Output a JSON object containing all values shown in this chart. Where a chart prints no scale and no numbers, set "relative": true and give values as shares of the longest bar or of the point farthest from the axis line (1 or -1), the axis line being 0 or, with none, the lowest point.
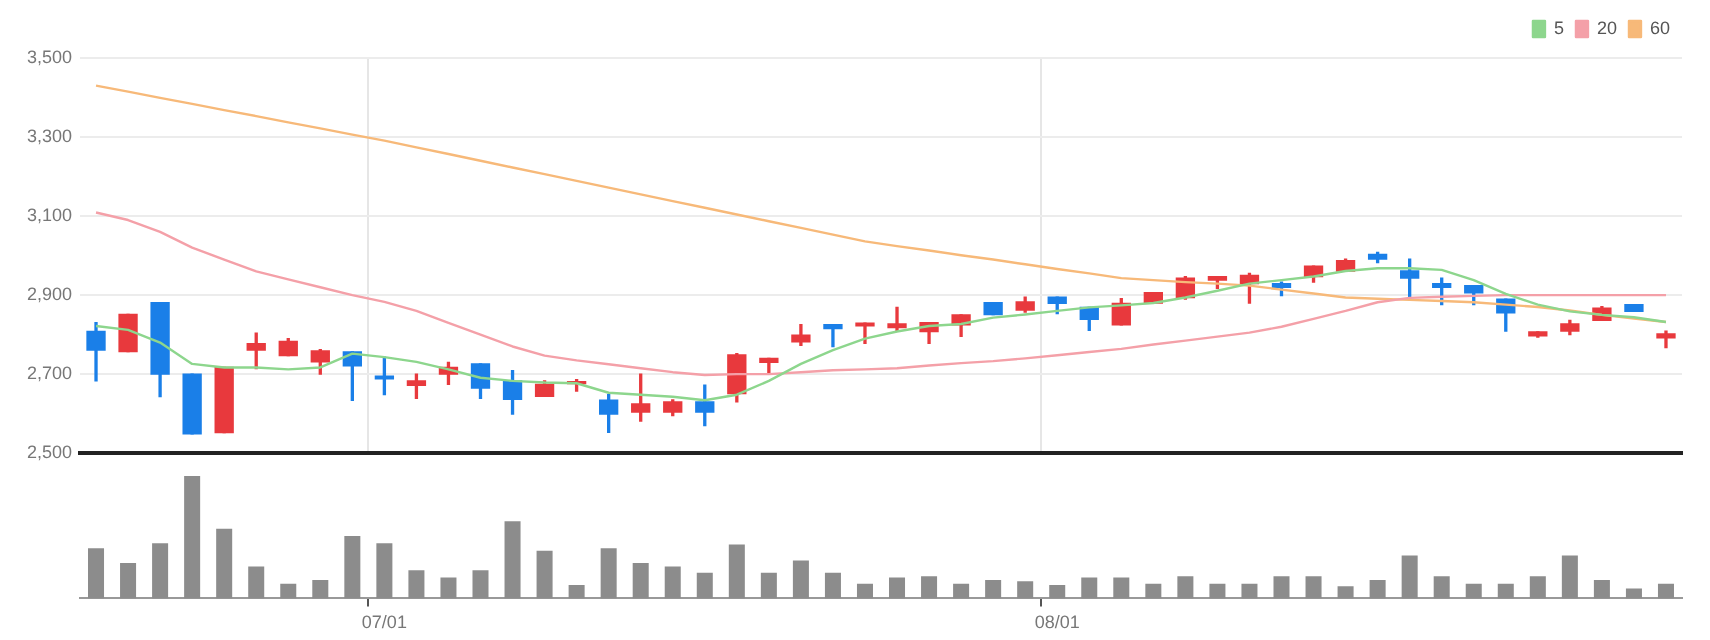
{
  "chart_data": [
    {
      "type": "candlestick",
      "categories": [
        null,
        null,
        null,
        null,
        null,
        null,
        null,
        null,
        null,
        null,
        null,
        null,
        null,
        null,
        null,
        null,
        null,
        null,
        null,
        null,
        null,
        null,
        null,
        null,
        null,
        null,
        null,
        null,
        null,
        null,
        null,
        null,
        null,
        null,
        null,
        null,
        null,
        null,
        null,
        null,
        null,
        null,
        null,
        null,
        null,
        null,
        null,
        null,
        null,
        null
      ],
      "ohlc": [
        [
          2808,
          2830,
          2683,
          2761
        ],
        [
          2757,
          2851,
          2757,
          2851
        ],
        [
          2881,
          2881,
          2643,
          2700
        ],
        [
          2700,
          2700,
          2549,
          2549
        ],
        [
          2552,
          2717,
          2552,
          2717
        ],
        [
          2761,
          2804,
          2714,
          2777
        ],
        [
          2747,
          2790,
          2747,
          2783
        ],
        [
          2731,
          2762,
          2700,
          2759
        ],
        [
          2756,
          2756,
          2634,
          2721
        ],
        [
          2695,
          2743,
          2648,
          2688
        ],
        [
          2672,
          2700,
          2639,
          2683
        ],
        [
          2700,
          2730,
          2674,
          2717
        ],
        [
          2726,
          2726,
          2639,
          2665
        ],
        [
          2683,
          2709,
          2599,
          2636
        ],
        [
          2644,
          2683,
          2644,
          2674
        ],
        [
          2676,
          2686,
          2657,
          2681
        ],
        [
          2634,
          2648,
          2553,
          2599
        ],
        [
          2604,
          2700,
          2581,
          2625
        ],
        [
          2604,
          2635,
          2595,
          2630
        ],
        [
          2630,
          2672,
          2570,
          2604
        ],
        [
          2651,
          2752,
          2630,
          2749
        ],
        [
          2730,
          2740,
          2704,
          2740
        ],
        [
          2782,
          2825,
          2773,
          2799
        ],
        [
          2825,
          2825,
          2770,
          2815
        ],
        [
          2822,
          2829,
          2778,
          2829
        ],
        [
          2818,
          2869,
          2811,
          2827
        ],
        [
          2808,
          2830,
          2778,
          2830
        ],
        [
          2825,
          2850,
          2796,
          2850
        ],
        [
          2881,
          2881,
          2851,
          2851
        ],
        [
          2862,
          2895,
          2857,
          2883
        ],
        [
          2895,
          2895,
          2853,
          2879
        ],
        [
          2869,
          2869,
          2811,
          2839
        ],
        [
          2825,
          2891,
          2825,
          2879
        ],
        [
          2880,
          2906,
          2880,
          2906
        ],
        [
          2894,
          2947,
          2890,
          2943
        ],
        [
          2938,
          2947,
          2917,
          2947
        ],
        [
          2929,
          2955,
          2880,
          2950
        ],
        [
          2929,
          2933,
          2899,
          2920
        ],
        [
          2947,
          2973,
          2933,
          2973
        ],
        [
          2961,
          2991,
          2961,
          2987
        ],
        [
          3003,
          3008,
          2982,
          2991
        ],
        [
          2961,
          2991,
          2889,
          2943
        ],
        [
          2929,
          2943,
          2876,
          2920
        ],
        [
          2924,
          2924,
          2876,
          2906
        ],
        [
          2890,
          2890,
          2809,
          2855
        ],
        [
          2797,
          2807,
          2794,
          2807
        ],
        [
          2809,
          2836,
          2800,
          2827
        ],
        [
          2836,
          2871,
          2836,
          2867
        ],
        [
          2876,
          2876,
          2859,
          2859
        ],
        [
          2792,
          2809,
          2767,
          2802
        ]
      ],
      "colors": [
        "#1a7fe8",
        "#e8393d",
        "#1a7fe8",
        "#1a7fe8",
        "#e8393d",
        "#e8393d",
        "#e8393d",
        "#e8393d",
        "#1a7fe8",
        "#1a7fe8",
        "#e8393d",
        "#e8393d",
        "#1a7fe8",
        "#1a7fe8",
        "#e8393d",
        "#e8393d",
        "#1a7fe8",
        "#e8393d",
        "#e8393d",
        "#1a7fe8",
        "#e8393d",
        "#e8393d",
        "#e8393d",
        "#1a7fe8",
        "#e8393d",
        "#e8393d",
        "#e8393d",
        "#e8393d",
        "#1a7fe8",
        "#e8393d",
        "#1a7fe8",
        "#1a7fe8",
        "#e8393d",
        "#e8393d",
        "#e8393d",
        "#e8393d",
        "#e8393d",
        "#1a7fe8",
        "#e8393d",
        "#e8393d",
        "#1a7fe8",
        "#1a7fe8",
        "#1a7fe8",
        "#1a7fe8",
        "#1a7fe8",
        "#e8393d",
        "#e8393d",
        "#e8393d",
        "#1a7fe8",
        "#e8393d"
      ],
      "series": [
        {
          "type": "line",
          "name": "5",
          "color": "#8dd68d",
          "values": [
            2822,
            2812,
            2780,
            2726,
            2717,
            2717,
            2712,
            2717,
            2752,
            2743,
            2731,
            2712,
            2691,
            2683,
            2679,
            2677,
            2653,
            2648,
            2643,
            2634,
            2648,
            2683,
            2726,
            2761,
            2790,
            2808,
            2822,
            2827,
            2843,
            2851,
            2860,
            2869,
            2874,
            2880,
            2894,
            2911,
            2929,
            2938,
            2947,
            2961,
            2968,
            2968,
            2964,
            2938,
            2903,
            2876,
            2859,
            2850,
            2844,
            2832
          ]
        },
        {
          "type": "line",
          "name": "20",
          "color": "#f4a0a8",
          "values": [
            3109,
            3090,
            3060,
            3020,
            2990,
            2960,
            2940,
            2920,
            2900,
            2883,
            2860,
            2830,
            2800,
            2770,
            2747,
            2735,
            2725,
            2715,
            2705,
            2698,
            2700,
            2700,
            2705,
            2710,
            2712,
            2715,
            2722,
            2728,
            2733,
            2740,
            2748,
            2756,
            2764,
            2775,
            2785,
            2795,
            2805,
            2820,
            2840,
            2860,
            2882,
            2893,
            2896,
            2898,
            2900,
            2900,
            2900,
            2900,
            2900,
            2900
          ]
        },
        {
          "type": "line",
          "name": "60",
          "color": "#f7b979",
          "values": [
            3430,
            3415,
            3399,
            3384,
            3368,
            3353,
            3337,
            3322,
            3306,
            3291,
            3274,
            3257,
            3240,
            3223,
            3206,
            3189,
            3172,
            3155,
            3138,
            3121,
            3104,
            3087,
            3070,
            3053,
            3036,
            3024,
            3013,
            3001,
            2990,
            2978,
            2966,
            2955,
            2943,
            2938,
            2933,
            2929,
            2924,
            2914,
            2904,
            2894,
            2891,
            2888,
            2885,
            2882,
            2876,
            2870,
            2861,
            2850,
            2841,
            2832
          ]
        }
      ],
      "ylim": [
        2500,
        3500
      ],
      "yticks": [
        {
          "value": 2500,
          "label": "2,500"
        },
        {
          "value": 2700,
          "label": "2,700"
        },
        {
          "value": 2900,
          "label": "2,900"
        },
        {
          "value": 3100,
          "label": "3,100"
        },
        {
          "value": 3300,
          "label": "3,300"
        },
        {
          "value": 3500,
          "label": "3,500"
        }
      ],
      "grid": true,
      "legend": "top right",
      "marker": "none",
      "line_style": "solid",
      "tick_labels": "y"
    },
    {
      "type": "bar",
      "categories": [
        null,
        null,
        null,
        null,
        null,
        null,
        null,
        null,
        null,
        "07/01",
        null,
        null,
        null,
        null,
        null,
        null,
        null,
        null,
        null,
        null,
        null,
        null,
        null,
        null,
        null,
        null,
        null,
        null,
        null,
        null,
        "08/01",
        null,
        null,
        null,
        null,
        null,
        null,
        null,
        null,
        null,
        null,
        null,
        null,
        null,
        null,
        null,
        null,
        null,
        null,
        null
      ],
      "values": [
        0.41,
        0.29,
        0.45,
        1,
        0.57,
        0.26,
        0.12,
        0.15,
        0.51,
        0.45,
        0.23,
        0.17,
        0.23,
        0.63,
        0.39,
        0.11,
        0.41,
        0.29,
        0.26,
        0.21,
        0.44,
        0.21,
        0.31,
        0.21,
        0.12,
        0.17,
        0.18,
        0.12,
        0.15,
        0.14,
        0.11,
        0.17,
        0.17,
        0.12,
        0.18,
        0.12,
        0.12,
        0.18,
        0.18,
        0.1,
        0.15,
        0.35,
        0.18,
        0.12,
        0.12,
        0.18,
        0.35,
        0.15,
        0.08,
        0.12
      ],
      "color": "#8c8c8c",
      "relative": true,
      "tick_labels": "x"
    }
  ]
}
